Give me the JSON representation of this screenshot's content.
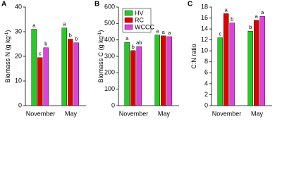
{
  "chart_data": [
    {
      "type": "bar",
      "panel": "A",
      "y_label": {
        "text": "Biomass N (g kg",
        "sup": "-1",
        "tail": ")"
      },
      "categories": [
        "November",
        "May"
      ],
      "series": [
        {
          "color": "#22cc22",
          "values": [
            31,
            31.5
          ],
          "labels": [
            "a",
            "a"
          ]
        },
        {
          "color": "#e00000",
          "values": [
            19.5,
            27
          ],
          "labels": [
            "c",
            "b"
          ]
        },
        {
          "color": "#e040e0",
          "values": [
            23.5,
            25.5
          ],
          "labels": [
            "b",
            "b"
          ]
        }
      ],
      "ylim": [
        0,
        40
      ],
      "yticks": [
        0,
        10,
        20,
        30,
        40
      ]
    },
    {
      "type": "bar",
      "panel": "B",
      "y_label": {
        "text": "Biomass C (g kg",
        "sup": "-1",
        "tail": ")"
      },
      "categories": [
        "November",
        "May"
      ],
      "series": [
        {
          "name": "HV",
          "color": "#22cc22",
          "values": [
            385,
            430
          ],
          "labels": [
            "a",
            "a"
          ]
        },
        {
          "name": "RC",
          "color": "#e00000",
          "values": [
            335,
            425
          ],
          "labels": [
            "b",
            "a"
          ]
        },
        {
          "name": "WCCC",
          "color": "#e040e0",
          "values": [
            360,
            420
          ],
          "labels": [
            "ab",
            "a"
          ]
        }
      ],
      "ylim": [
        0,
        600
      ],
      "yticks": [
        0,
        100,
        200,
        300,
        400,
        500,
        600
      ],
      "legend": "top-left"
    },
    {
      "type": "bar",
      "panel": "C",
      "y_label": {
        "text": "C:N ratio"
      },
      "categories": [
        "November",
        "May"
      ],
      "series": [
        {
          "color": "#22cc22",
          "values": [
            12.4,
            13.6
          ],
          "labels": [
            "c",
            "b"
          ]
        },
        {
          "color": "#e00000",
          "values": [
            16.8,
            15.6
          ],
          "labels": [
            "a",
            "a"
          ]
        },
        {
          "color": "#e040e0",
          "values": [
            15.1,
            16.3
          ],
          "labels": [
            "b",
            "a"
          ]
        }
      ],
      "ylim": [
        0,
        18
      ],
      "yticks": [
        0,
        2,
        4,
        6,
        8,
        10,
        12,
        14,
        16,
        18
      ]
    }
  ]
}
